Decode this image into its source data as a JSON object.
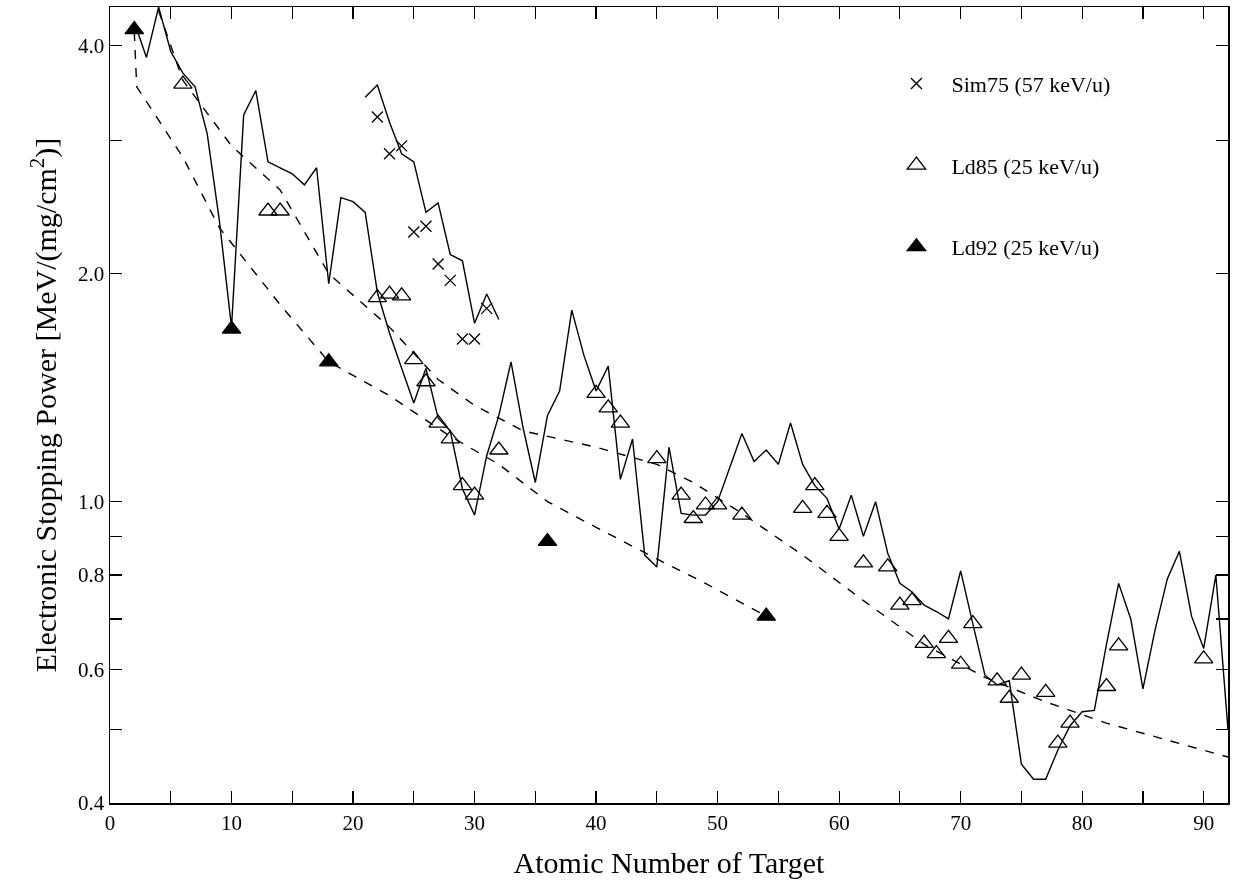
{
  "chart_data": {
    "type": "scatter",
    "xlabel": "Atomic Number of Target",
    "ylabel": "Electronic Stopping Power [MeV/(mg/cm$^{2}$)]",
    "xlim": [
      0,
      92
    ],
    "xticks": [
      0,
      {
        "value": 5,
        "label": null
      },
      10,
      {
        "value": 15,
        "label": null
      },
      20,
      {
        "value": 25,
        "label": null
      },
      30,
      {
        "value": 35,
        "label": null
      },
      40,
      {
        "value": 45,
        "label": null
      },
      50,
      {
        "value": 55,
        "label": null
      },
      60,
      {
        "value": 65,
        "label": null
      },
      70,
      {
        "value": 75,
        "label": null
      },
      80,
      {
        "value": 85,
        "label": null
      },
      90
    ],
    "ylim": [
      0.4,
      4.5
    ],
    "yticks": [
      0.4,
      {
        "value": 0.5,
        "label": null
      },
      0.6,
      {
        "value": 0.7,
        "label": null
      },
      0.8,
      {
        "value": 0.9,
        "label": null
      },
      {
        "value": 1,
        "label": "1.0"
      },
      {
        "value": 2,
        "label": "2.0"
      },
      {
        "value": 3,
        "label": null
      },
      {
        "value": 4,
        "label": "4.0"
      }
    ],
    "log": true,
    "grid": false,
    "legend": "top right",
    "series": [
      {
        "type": "line",
        "color": "#000000",
        "marker": "none",
        "line_style": "solid",
        "x": [
          2,
          3,
          4,
          5,
          6,
          7,
          8,
          9,
          10,
          11,
          12,
          13,
          14,
          15,
          16,
          17,
          18,
          19,
          20,
          21,
          22,
          23,
          24,
          25,
          26,
          27,
          28,
          29,
          30,
          31,
          32,
          33,
          34,
          35,
          36,
          37,
          38,
          39,
          40,
          41,
          42,
          43,
          44,
          45,
          46,
          47,
          48,
          49,
          50,
          52,
          53,
          54,
          55,
          56,
          57,
          58,
          59,
          60,
          61,
          62,
          63,
          64,
          65,
          66,
          67,
          68,
          69,
          70,
          71,
          72,
          73,
          74,
          75,
          76,
          77,
          78,
          79,
          80,
          81,
          82,
          83,
          84,
          85,
          86,
          87,
          88,
          89,
          90,
          91,
          92
        ],
        "values": [
          4.3,
          3.86,
          4.5,
          3.93,
          3.68,
          3.53,
          3.06,
          2.35,
          1.7,
          3.24,
          3.49,
          2.81,
          2.76,
          2.71,
          2.62,
          2.76,
          1.94,
          2.52,
          2.49,
          2.41,
          1.89,
          1.67,
          1.5,
          1.35,
          1.5,
          1.29,
          1.24,
          1.04,
          0.96,
          1.15,
          1.3,
          1.53,
          1.25,
          1.06,
          1.3,
          1.4,
          1.79,
          1.56,
          1.4,
          1.51,
          1.07,
          1.21,
          0.85,
          0.82,
          1.18,
          0.965,
          0.96,
          0.96,
          1.0,
          1.23,
          1.13,
          1.17,
          1.12,
          1.27,
          1.12,
          1.05,
          1.01,
          0.92,
          1.02,
          0.9,
          1.0,
          0.855,
          0.78,
          0.76,
          0.73,
          0.716,
          0.7,
          0.81,
          0.69,
          0.59,
          0.573,
          0.58,
          0.45,
          0.43,
          0.43,
          0.47,
          0.506,
          0.528,
          0.53,
          0.648,
          0.78,
          0.7,
          0.566,
          0.677,
          0.79,
          0.86,
          0.706,
          0.64,
          0.8,
          0.5
        ]
      },
      {
        "type": "line",
        "color": "#000000",
        "marker": "none",
        "line_style": "solid",
        "x": [
          21,
          22,
          23,
          24,
          25,
          26,
          27,
          28,
          29,
          30,
          31,
          32
        ],
        "values": [
          3.42,
          3.55,
          3.17,
          2.88,
          2.81,
          2.41,
          2.48,
          2.12,
          2.08,
          1.72,
          1.88,
          1.74
        ]
      },
      {
        "type": "line",
        "color": "#000000",
        "marker": "none",
        "line_style": "dashed",
        "x": [
          4,
          6,
          10,
          14,
          18,
          23,
          27,
          30,
          34,
          40,
          45,
          48,
          52,
          57,
          62,
          67,
          72,
          77,
          82,
          92
        ],
        "values": [
          4.45,
          3.6,
          2.95,
          2.58,
          2.0,
          1.7,
          1.45,
          1.34,
          1.24,
          1.18,
          1.12,
          1.06,
          0.965,
          0.85,
          0.74,
          0.648,
          0.586,
          0.544,
          0.51,
          0.46
        ]
      },
      {
        "type": "line",
        "color": "#000000",
        "marker": "none",
        "line_style": "dashed",
        "x": [
          2,
          2.2,
          6,
          9,
          14,
          18,
          23,
          28,
          32,
          36,
          40,
          45,
          49,
          54
        ],
        "values": [
          4.17,
          3.53,
          2.85,
          2.3,
          1.82,
          1.53,
          1.38,
          1.22,
          1.12,
          1.0,
          0.925,
          0.84,
          0.78,
          0.706
        ]
      },
      {
        "name": "Sim75 (57 keV/u)",
        "color": "#000000",
        "marker": "cross",
        "x": [
          22,
          23,
          24,
          25,
          26,
          27,
          28,
          29,
          30,
          31
        ],
        "values": [
          3.22,
          2.88,
          2.95,
          2.27,
          2.31,
          2.06,
          1.96,
          1.64,
          1.64,
          1.8
        ]
      },
      {
        "name": "Ld85 (25 keV/u)",
        "color": "#000000",
        "marker": "triangle-open",
        "x": [
          6,
          13,
          14,
          22,
          23,
          24,
          25,
          26,
          27,
          28,
          29,
          30,
          32,
          40,
          41,
          42,
          45,
          47,
          48,
          49,
          50,
          52,
          57,
          58,
          59,
          60,
          62,
          64,
          65,
          66,
          67,
          68,
          69,
          70,
          71,
          73,
          74,
          75,
          77,
          78,
          79,
          82,
          83,
          90
        ],
        "values": [
          3.56,
          2.42,
          2.42,
          1.86,
          1.88,
          1.87,
          1.54,
          1.44,
          1.27,
          1.21,
          1.05,
          1.02,
          1.17,
          1.39,
          1.33,
          1.27,
          1.14,
          1.02,
          0.95,
          0.99,
          0.99,
          0.96,
          0.98,
          1.05,
          0.965,
          0.9,
          0.83,
          0.82,
          0.73,
          0.74,
          0.65,
          0.63,
          0.66,
          0.61,
          0.69,
          0.58,
          0.55,
          0.59,
          0.56,
          0.48,
          0.51,
          0.57,
          0.645,
          0.62
        ]
      },
      {
        "name": "Ld92 (25 keV/u)",
        "color": "#000000",
        "marker": "triangle",
        "x": [
          2,
          10,
          18,
          36,
          54
        ],
        "values": [
          4.2,
          1.69,
          1.53,
          0.886,
          0.706
        ]
      }
    ]
  }
}
